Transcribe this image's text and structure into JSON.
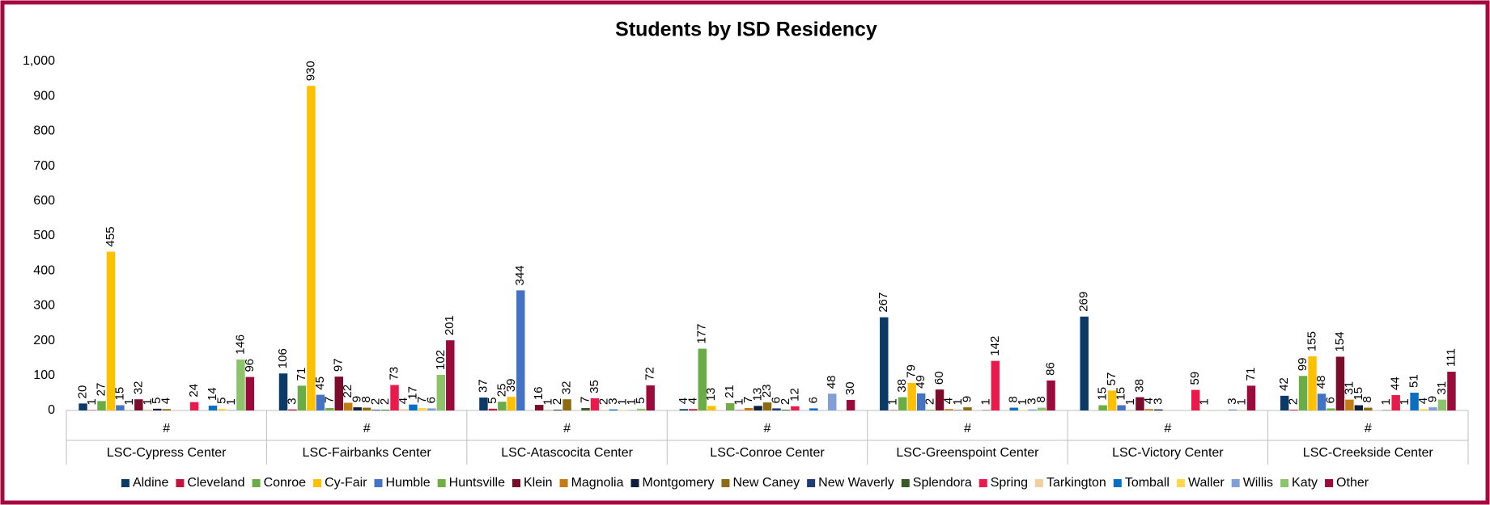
{
  "chart_data": {
    "type": "bar",
    "title": "Students by ISD Residency",
    "categories": [
      "LSC-Cypress Center",
      "LSC-Fairbanks Center",
      "LSC-Atascocita Center",
      "LSC-Conroe Center",
      "LSC-Greenspoint Center",
      "LSC-Victory Center",
      "LSC-Creekside Center"
    ],
    "subcategories": [
      "#",
      "#",
      "#",
      "#",
      "#",
      "#",
      "#"
    ],
    "ylim": [
      0,
      1000
    ],
    "yticks": [
      0,
      100,
      200,
      300,
      400,
      500,
      600,
      700,
      800,
      900,
      {
        "value": 1000,
        "label": "1,000"
      }
    ],
    "grid": false,
    "legend": "bottom",
    "series": [
      {
        "name": "Aldine",
        "color": "#0b3a66",
        "values": [
          20,
          106,
          37,
          4,
          267,
          269,
          42
        ]
      },
      {
        "name": "Cleveland",
        "color": "#c0143c",
        "values": [
          1,
          3,
          5,
          4,
          1,
          null,
          2
        ]
      },
      {
        "name": "Conroe",
        "color": "#6aad46",
        "values": [
          27,
          71,
          25,
          177,
          38,
          15,
          99
        ]
      },
      {
        "name": "Cy-Fair",
        "color": "#ffc000",
        "values": [
          455,
          930,
          39,
          13,
          79,
          57,
          155
        ]
      },
      {
        "name": "Humble",
        "color": "#4472c4",
        "values": [
          15,
          45,
          344,
          null,
          49,
          15,
          48
        ]
      },
      {
        "name": "Huntsville",
        "color": "#70ad47",
        "values": [
          1,
          7,
          null,
          21,
          2,
          1,
          6
        ]
      },
      {
        "name": "Klein",
        "color": "#7b0d2a",
        "values": [
          32,
          97,
          16,
          1,
          60,
          38,
          154
        ]
      },
      {
        "name": "Magnolia",
        "color": "#c67b12",
        "values": [
          1,
          22,
          1,
          7,
          4,
          4,
          31
        ]
      },
      {
        "name": "Montgomery",
        "color": "#0d1f3c",
        "values": [
          5,
          9,
          2,
          13,
          1,
          3,
          15
        ]
      },
      {
        "name": "New Caney",
        "color": "#8c6b12",
        "values": [
          4,
          8,
          32,
          23,
          9,
          null,
          8
        ]
      },
      {
        "name": "New Waverly",
        "color": "#1f3d73",
        "values": [
          null,
          2,
          null,
          6,
          null,
          null,
          null
        ]
      },
      {
        "name": "Splendora",
        "color": "#3a5a25",
        "values": [
          null,
          2,
          7,
          2,
          1,
          null,
          1
        ]
      },
      {
        "name": "Spring",
        "color": "#ea1a4c",
        "values": [
          24,
          73,
          35,
          12,
          142,
          59,
          44
        ]
      },
      {
        "name": "Tarkington",
        "color": "#f3cfa0",
        "values": [
          null,
          4,
          2,
          null,
          null,
          1,
          1
        ]
      },
      {
        "name": "Tomball",
        "color": "#0a6fc2",
        "values": [
          14,
          17,
          3,
          6,
          8,
          null,
          51
        ]
      },
      {
        "name": "Waller",
        "color": "#ffd84a",
        "values": [
          5,
          7,
          1,
          null,
          1,
          null,
          4
        ]
      },
      {
        "name": "Willis",
        "color": "#7f9fd6",
        "values": [
          1,
          6,
          1,
          48,
          3,
          3,
          9
        ]
      },
      {
        "name": "Katy",
        "color": "#8dc46b",
        "values": [
          146,
          102,
          5,
          null,
          8,
          1,
          31
        ]
      },
      {
        "name": "Other",
        "color": "#9a0a3a",
        "values": [
          96,
          201,
          72,
          30,
          86,
          71,
          111
        ]
      }
    ]
  }
}
